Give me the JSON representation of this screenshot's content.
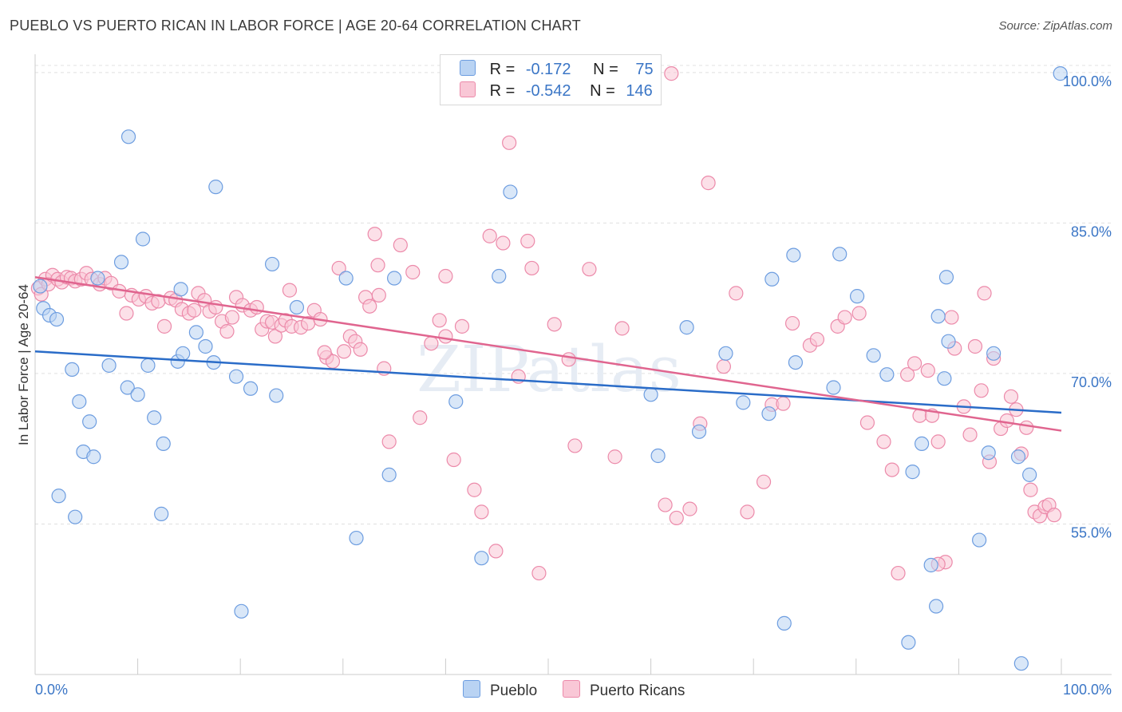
{
  "title": "PUEBLO VS PUERTO RICAN IN LABOR FORCE | AGE 20-64 CORRELATION CHART",
  "source": "Source: ZipAtlas.com",
  "watermark": "ZIPatlas",
  "colors": {
    "pueblo_fill": "#b9d3f3",
    "pueblo_stroke": "#6d9de0",
    "pueblo_line": "#2a6cc8",
    "pr_fill": "#f9c7d6",
    "pr_stroke": "#ec8aaa",
    "pr_line": "#e0658f",
    "tick_label": "#3b76c6",
    "grid": "#e0e0e0"
  },
  "legend": {
    "rows": [
      {
        "r_label": "R =",
        "r_value": "-0.172",
        "n_label": "N =",
        "n_value": "75"
      },
      {
        "r_label": "R =",
        "r_value": "-0.542",
        "n_label": "N =",
        "n_value": "146"
      }
    ],
    "bottom": [
      "Pueblo",
      "Puerto Ricans"
    ]
  },
  "chart_data": {
    "type": "scatter",
    "title": "PUEBLO VS PUERTO RICAN IN LABOR FORCE | AGE 20-64 CORRELATION CHART",
    "xlabel": "",
    "ylabel": "In Labor Force | Age 20-64",
    "xlim": [
      0,
      100
    ],
    "ylim": [
      40,
      101.5
    ],
    "x_tick_labels": [
      "0.0%",
      "100.0%"
    ],
    "y_ticks": [
      55,
      70,
      85,
      100
    ],
    "y_tick_labels": [
      "55.0%",
      "70.0%",
      "85.0%",
      "100.0%"
    ],
    "grid": true,
    "legend_position": "top-center",
    "series": [
      {
        "name": "Pueblo",
        "r": -0.172,
        "n": 75,
        "trend": {
          "x": [
            0,
            100
          ],
          "y": [
            72.2,
            66.1
          ]
        },
        "points": [
          [
            0.5,
            78.7
          ],
          [
            0.8,
            76.5
          ],
          [
            1.4,
            75.8
          ],
          [
            2.1,
            75.4
          ],
          [
            3.6,
            70.4
          ],
          [
            4.3,
            67.2
          ],
          [
            5.3,
            65.2
          ],
          [
            4.7,
            62.2
          ],
          [
            5.7,
            61.7
          ],
          [
            2.3,
            57.8
          ],
          [
            3.9,
            55.7
          ],
          [
            6.1,
            79.5
          ],
          [
            7.2,
            70.8
          ],
          [
            8.4,
            81.1
          ],
          [
            9.1,
            93.6
          ],
          [
            9.0,
            68.6
          ],
          [
            10.0,
            67.9
          ],
          [
            10.5,
            83.4
          ],
          [
            11.0,
            70.8
          ],
          [
            11.6,
            65.6
          ],
          [
            12.3,
            56.0
          ],
          [
            12.5,
            63.0
          ],
          [
            13.9,
            71.2
          ],
          [
            14.4,
            72.0
          ],
          [
            14.2,
            78.4
          ],
          [
            15.7,
            74.1
          ],
          [
            16.6,
            72.7
          ],
          [
            17.4,
            71.1
          ],
          [
            17.6,
            88.6
          ],
          [
            19.6,
            69.7
          ],
          [
            20.1,
            46.3
          ],
          [
            21.0,
            68.5
          ],
          [
            23.1,
            80.9
          ],
          [
            23.5,
            67.8
          ],
          [
            25.5,
            76.6
          ],
          [
            30.3,
            79.5
          ],
          [
            31.3,
            53.6
          ],
          [
            35.0,
            79.5
          ],
          [
            34.5,
            59.9
          ],
          [
            41.0,
            67.2
          ],
          [
            43.5,
            51.6
          ],
          [
            45.2,
            79.7
          ],
          [
            46.3,
            88.1
          ],
          [
            60.0,
            67.9
          ],
          [
            60.7,
            61.8
          ],
          [
            63.5,
            74.6
          ],
          [
            64.7,
            64.2
          ],
          [
            67.3,
            72.0
          ],
          [
            69.0,
            67.1
          ],
          [
            71.5,
            66.0
          ],
          [
            71.8,
            79.4
          ],
          [
            73.9,
            81.8
          ],
          [
            74.1,
            71.1
          ],
          [
            73.0,
            45.1
          ],
          [
            77.8,
            68.6
          ],
          [
            78.4,
            81.9
          ],
          [
            80.1,
            77.7
          ],
          [
            81.7,
            71.8
          ],
          [
            83.0,
            69.9
          ],
          [
            85.5,
            60.2
          ],
          [
            86.4,
            63.0
          ],
          [
            85.1,
            43.2
          ],
          [
            87.3,
            50.9
          ],
          [
            88.0,
            75.7
          ],
          [
            89.0,
            73.2
          ],
          [
            88.6,
            69.5
          ],
          [
            88.8,
            79.6
          ],
          [
            87.8,
            46.8
          ],
          [
            92.9,
            62.1
          ],
          [
            93.4,
            72.0
          ],
          [
            95.8,
            61.7
          ],
          [
            96.9,
            59.9
          ],
          [
            96.1,
            41.1
          ],
          [
            99.9,
            99.9
          ],
          [
            92.0,
            53.4
          ]
        ]
      },
      {
        "name": "Puerto Ricans",
        "r": -0.542,
        "n": 146,
        "trend": {
          "x": [
            0,
            100
          ],
          "y": [
            79.6,
            64.3
          ]
        },
        "points": [
          [
            0.3,
            78.5
          ],
          [
            0.6,
            77.9
          ],
          [
            1.0,
            79.4
          ],
          [
            1.3,
            78.9
          ],
          [
            1.7,
            79.8
          ],
          [
            2.2,
            79.4
          ],
          [
            2.6,
            79.1
          ],
          [
            3.1,
            79.6
          ],
          [
            3.5,
            79.5
          ],
          [
            3.9,
            79.2
          ],
          [
            4.5,
            79.4
          ],
          [
            5.0,
            80.0
          ],
          [
            5.5,
            79.4
          ],
          [
            6.3,
            78.9
          ],
          [
            6.8,
            79.5
          ],
          [
            7.4,
            79.0
          ],
          [
            8.2,
            78.2
          ],
          [
            8.9,
            76.0
          ],
          [
            9.4,
            77.8
          ],
          [
            10.1,
            77.4
          ],
          [
            10.8,
            77.7
          ],
          [
            11.4,
            77.0
          ],
          [
            12.0,
            77.2
          ],
          [
            12.6,
            74.7
          ],
          [
            13.2,
            77.5
          ],
          [
            13.7,
            77.3
          ],
          [
            14.3,
            76.4
          ],
          [
            15.0,
            76.0
          ],
          [
            15.5,
            76.3
          ],
          [
            15.9,
            78.0
          ],
          [
            16.5,
            77.3
          ],
          [
            17.0,
            76.2
          ],
          [
            17.6,
            76.6
          ],
          [
            18.2,
            75.2
          ],
          [
            18.7,
            74.2
          ],
          [
            19.2,
            75.6
          ],
          [
            19.6,
            77.6
          ],
          [
            20.2,
            76.8
          ],
          [
            21.0,
            76.3
          ],
          [
            21.6,
            76.6
          ],
          [
            22.1,
            74.4
          ],
          [
            22.6,
            75.2
          ],
          [
            23.1,
            75.1
          ],
          [
            23.4,
            73.7
          ],
          [
            24.0,
            74.8
          ],
          [
            24.4,
            75.3
          ],
          [
            25.0,
            74.7
          ],
          [
            24.8,
            78.3
          ],
          [
            25.9,
            74.6
          ],
          [
            26.6,
            75.0
          ],
          [
            27.2,
            76.3
          ],
          [
            27.8,
            75.4
          ],
          [
            28.4,
            71.6
          ],
          [
            29.0,
            71.2
          ],
          [
            29.6,
            80.5
          ],
          [
            30.1,
            72.2
          ],
          [
            30.7,
            73.7
          ],
          [
            31.2,
            73.2
          ],
          [
            31.7,
            72.4
          ],
          [
            32.2,
            77.6
          ],
          [
            32.6,
            76.7
          ],
          [
            33.1,
            83.9
          ],
          [
            33.4,
            80.8
          ],
          [
            34.0,
            70.5
          ],
          [
            34.5,
            63.2
          ],
          [
            35.6,
            82.8
          ],
          [
            36.8,
            80.1
          ],
          [
            37.5,
            65.6
          ],
          [
            38.6,
            73.0
          ],
          [
            39.4,
            75.3
          ],
          [
            40.0,
            73.7
          ],
          [
            40.8,
            61.4
          ],
          [
            41.6,
            74.7
          ],
          [
            42.8,
            58.4
          ],
          [
            43.5,
            56.2
          ],
          [
            44.3,
            83.7
          ],
          [
            44.9,
            52.3
          ],
          [
            45.6,
            83.0
          ],
          [
            46.2,
            93.0
          ],
          [
            47.1,
            69.7
          ],
          [
            48.0,
            83.2
          ],
          [
            48.4,
            80.5
          ],
          [
            49.1,
            50.1
          ],
          [
            50.6,
            74.9
          ],
          [
            52.0,
            71.4
          ],
          [
            54.0,
            80.4
          ],
          [
            56.5,
            61.7
          ],
          [
            57.2,
            74.5
          ],
          [
            58.4,
            99.9
          ],
          [
            61.4,
            56.9
          ],
          [
            62.0,
            99.9
          ],
          [
            63.8,
            56.5
          ],
          [
            64.8,
            65.0
          ],
          [
            65.6,
            89.0
          ],
          [
            67.1,
            70.7
          ],
          [
            68.3,
            78.0
          ],
          [
            69.4,
            56.2
          ],
          [
            71.8,
            66.9
          ],
          [
            72.9,
            67.0
          ],
          [
            73.8,
            75.0
          ],
          [
            75.5,
            72.8
          ],
          [
            76.2,
            73.4
          ],
          [
            78.2,
            74.7
          ],
          [
            78.9,
            75.6
          ],
          [
            80.3,
            76.0
          ],
          [
            81.1,
            65.1
          ],
          [
            82.7,
            63.2
          ],
          [
            83.5,
            60.4
          ],
          [
            84.1,
            50.1
          ],
          [
            85.0,
            69.9
          ],
          [
            85.7,
            71.0
          ],
          [
            86.2,
            65.8
          ],
          [
            87.0,
            70.3
          ],
          [
            87.4,
            65.8
          ],
          [
            88.0,
            63.2
          ],
          [
            88.7,
            51.2
          ],
          [
            89.3,
            75.6
          ],
          [
            89.6,
            72.5
          ],
          [
            90.5,
            66.7
          ],
          [
            91.1,
            63.9
          ],
          [
            91.6,
            72.7
          ],
          [
            92.2,
            68.3
          ],
          [
            93.0,
            61.2
          ],
          [
            93.4,
            71.5
          ],
          [
            94.1,
            64.5
          ],
          [
            94.7,
            65.3
          ],
          [
            95.1,
            67.7
          ],
          [
            95.6,
            66.4
          ],
          [
            96.1,
            62.0
          ],
          [
            96.6,
            64.6
          ],
          [
            97.0,
            58.4
          ],
          [
            97.4,
            56.2
          ],
          [
            97.9,
            55.8
          ],
          [
            98.4,
            56.7
          ],
          [
            98.8,
            56.9
          ],
          [
            99.3,
            55.9
          ],
          [
            88.0,
            51.0
          ],
          [
            62.5,
            55.6
          ],
          [
            71.0,
            59.2
          ],
          [
            52.6,
            62.8
          ],
          [
            40.0,
            79.7
          ],
          [
            33.5,
            77.8
          ],
          [
            28.2,
            72.1
          ],
          [
            92.5,
            78.0
          ]
        ]
      }
    ]
  }
}
